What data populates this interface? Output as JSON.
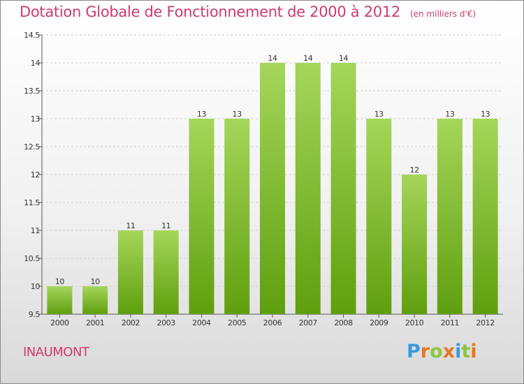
{
  "header": {
    "title": "Dotation Globale de Fonctionnement de 2000 à 2012",
    "subtitle": "(en milliers d'€)"
  },
  "footer": {
    "commune": "INAUMONT",
    "logo_letters": [
      "P",
      "r",
      "o",
      "x",
      "i",
      "t",
      "i"
    ],
    "logo_colors": [
      "#3a9ad9",
      "#e8761f",
      "#8cc63f",
      "#e8761f",
      "#3a9ad9",
      "#8cc63f",
      "#e8761f"
    ]
  },
  "colors": {
    "bar_light": "#a5d65a",
    "bar_dark": "#5f9f0e",
    "accent": "#d23a6e"
  },
  "chart_data": {
    "type": "bar",
    "categories": [
      "2000",
      "2001",
      "2002",
      "2003",
      "2004",
      "2005",
      "2006",
      "2007",
      "2008",
      "2009",
      "2010",
      "2011",
      "2012"
    ],
    "values": [
      10,
      10,
      11,
      11,
      13,
      13,
      14,
      14,
      14,
      13,
      12,
      13,
      13
    ],
    "value_labels": [
      "10",
      "10",
      "11",
      "11",
      "13",
      "13",
      "14",
      "14",
      "14",
      "13",
      "12",
      "13",
      "13"
    ],
    "title": "Dotation Globale de Fonctionnement de 2000 à 2012",
    "ylim": [
      9.5,
      14.5
    ],
    "yticks": [
      9.5,
      10,
      10.5,
      11,
      11.5,
      12,
      12.5,
      13,
      13.5,
      14,
      14.5
    ],
    "ytick_labels": [
      "9.5",
      "10",
      "10.5",
      "11",
      "11.5",
      "12",
      "12.5",
      "13",
      "13.5",
      "14",
      "14.5"
    ],
    "grid": true
  }
}
